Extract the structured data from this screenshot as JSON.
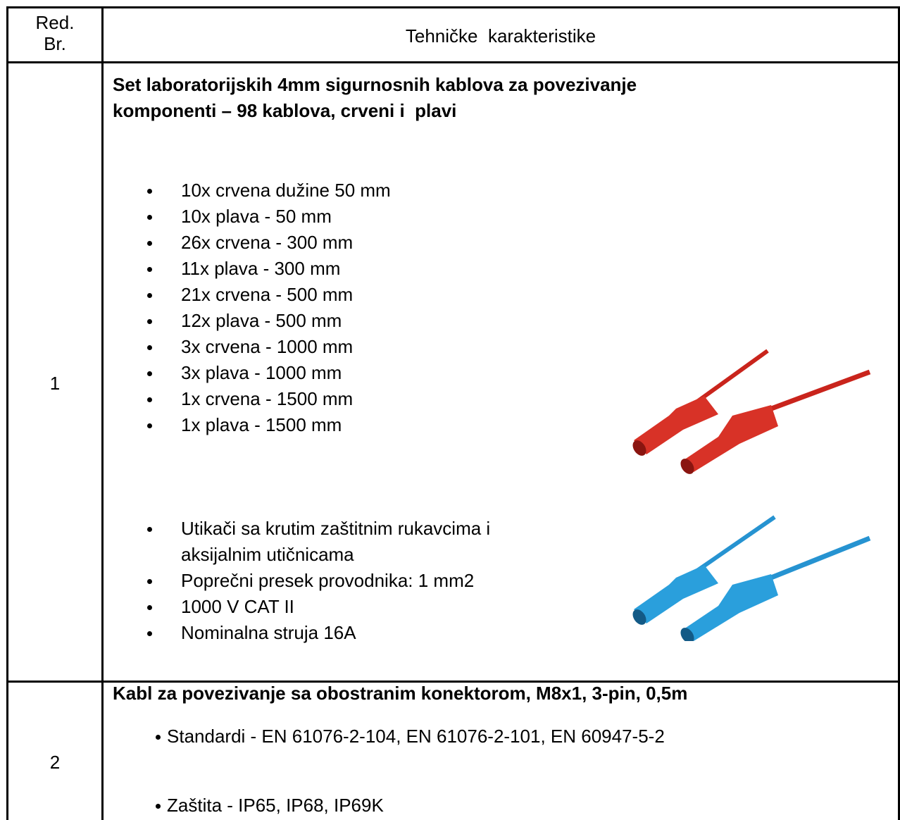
{
  "table": {
    "header": [
      "Red.",
      "Br.",
      "Tehničke  karakteristike"
    ],
    "rows": [
      {
        "number": "1",
        "title": [
          "Set laboratorijskih 4mm sigurnosnih kablova za povezivanje",
          "komponenti – 98 kablova, crveni i  plavi"
        ],
        "list1": [
          "10x crvena dužine 50 mm",
          "10x plava - 50 mm",
          "26x crvena - 300 mm",
          "11x plava - 300 mm",
          "21x crvena - 500 mm",
          "12x plava - 500 mm",
          "3x crvena - 1000 mm",
          "3x plava - 1000 mm",
          "1x crvena - 1500 mm",
          "1x plava - 1500 mm"
        ],
        "list2": [
          "Utikači sa krutim zaštitnim rukavcima i",
          "aksijalnim utičnicama",
          "Poprečni presek provodnika: 1 mm2",
          "1000 V CAT II",
          "Nominalna struja 16A"
        ]
      },
      {
        "number": "2",
        "title": [
          "Kabl za povezivanje sa obostranim konektorom, M8x1, 3-pin, 0,5m"
        ],
        "list1": [
          "Standardi - EN 61076-2-104, EN 61076-2-101, EN 60947-5-2",
          "Zaštita - IP65, IP68, IP69K"
        ]
      }
    ]
  }
}
